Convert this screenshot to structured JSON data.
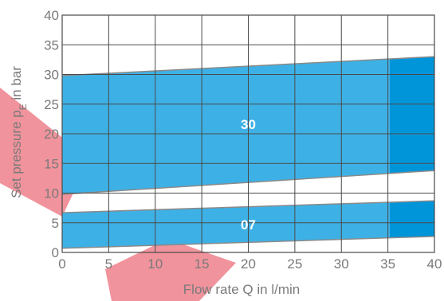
{
  "chart_data": {
    "type": "area",
    "xlabel": "Flow rate Q in l/min",
    "ylabel_main": "Set pressure p",
    "ylabel_sub": "E",
    "ylabel_rest": " in bar",
    "xlim": [
      0,
      40
    ],
    "ylim": [
      0,
      40
    ],
    "x_ticks": [
      "0",
      "5",
      "10",
      "15",
      "20",
      "25",
      "30",
      "35",
      "40"
    ],
    "y_ticks": [
      "0",
      "5",
      "10",
      "15",
      "20",
      "25",
      "30",
      "35",
      "40"
    ],
    "grid": true,
    "extended_range_from_x": 35.2,
    "series": [
      {
        "name": "30",
        "x": [
          0,
          40
        ],
        "upper": [
          29.8,
          33.0
        ],
        "lower": [
          9.8,
          13.8
        ]
      },
      {
        "name": "07",
        "x": [
          0,
          40
        ],
        "upper": [
          6.7,
          8.7
        ],
        "lower": [
          0.7,
          2.7
        ]
      }
    ],
    "colors": {
      "band": "#3db1e6",
      "band_extended": "#0095d9",
      "band_edge": "#8a8a8a",
      "grid": "#4a4a4a",
      "text": "#7a7a7a",
      "watermark": "#e63a4a"
    }
  }
}
